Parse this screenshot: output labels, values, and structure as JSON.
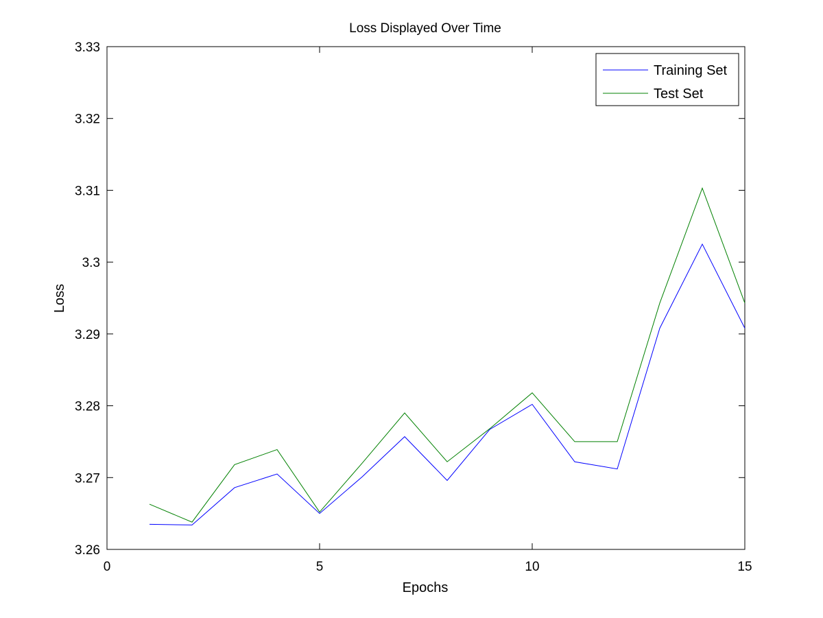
{
  "chart_data": {
    "type": "line",
    "title": "Loss Displayed Over Time",
    "xlabel": "Epochs",
    "ylabel": "Loss",
    "xlim": [
      0,
      15
    ],
    "ylim": [
      3.26,
      3.33
    ],
    "xticks": [
      0,
      5,
      10,
      15
    ],
    "xtick_labels": [
      "0",
      "5",
      "10",
      "15"
    ],
    "yticks": [
      3.26,
      3.27,
      3.28,
      3.29,
      3.3,
      3.31,
      3.32,
      3.33
    ],
    "ytick_labels": [
      "3.26",
      "3.27",
      "3.28",
      "3.29",
      "3.3",
      "3.31",
      "3.32",
      "3.33"
    ],
    "grid": false,
    "legend": "top-right",
    "x": [
      1,
      2,
      3,
      4,
      5,
      6,
      7,
      8,
      9,
      10,
      11,
      12,
      13,
      14,
      15
    ],
    "series": [
      {
        "name": "Training Set",
        "color": "#0000ff",
        "values": [
          3.2635,
          3.2634,
          3.2686,
          3.2705,
          3.265,
          3.2701,
          3.2757,
          3.2696,
          3.2767,
          3.2802,
          3.2722,
          3.2712,
          3.2908,
          3.3025,
          3.2908
        ]
      },
      {
        "name": "Test Set",
        "color": "#008000",
        "values": [
          3.2663,
          3.2638,
          3.2718,
          3.2739,
          3.2652,
          3.272,
          3.279,
          3.2722,
          3.2768,
          3.2818,
          3.275,
          3.275,
          3.2943,
          3.3103,
          3.2943
        ]
      }
    ]
  }
}
